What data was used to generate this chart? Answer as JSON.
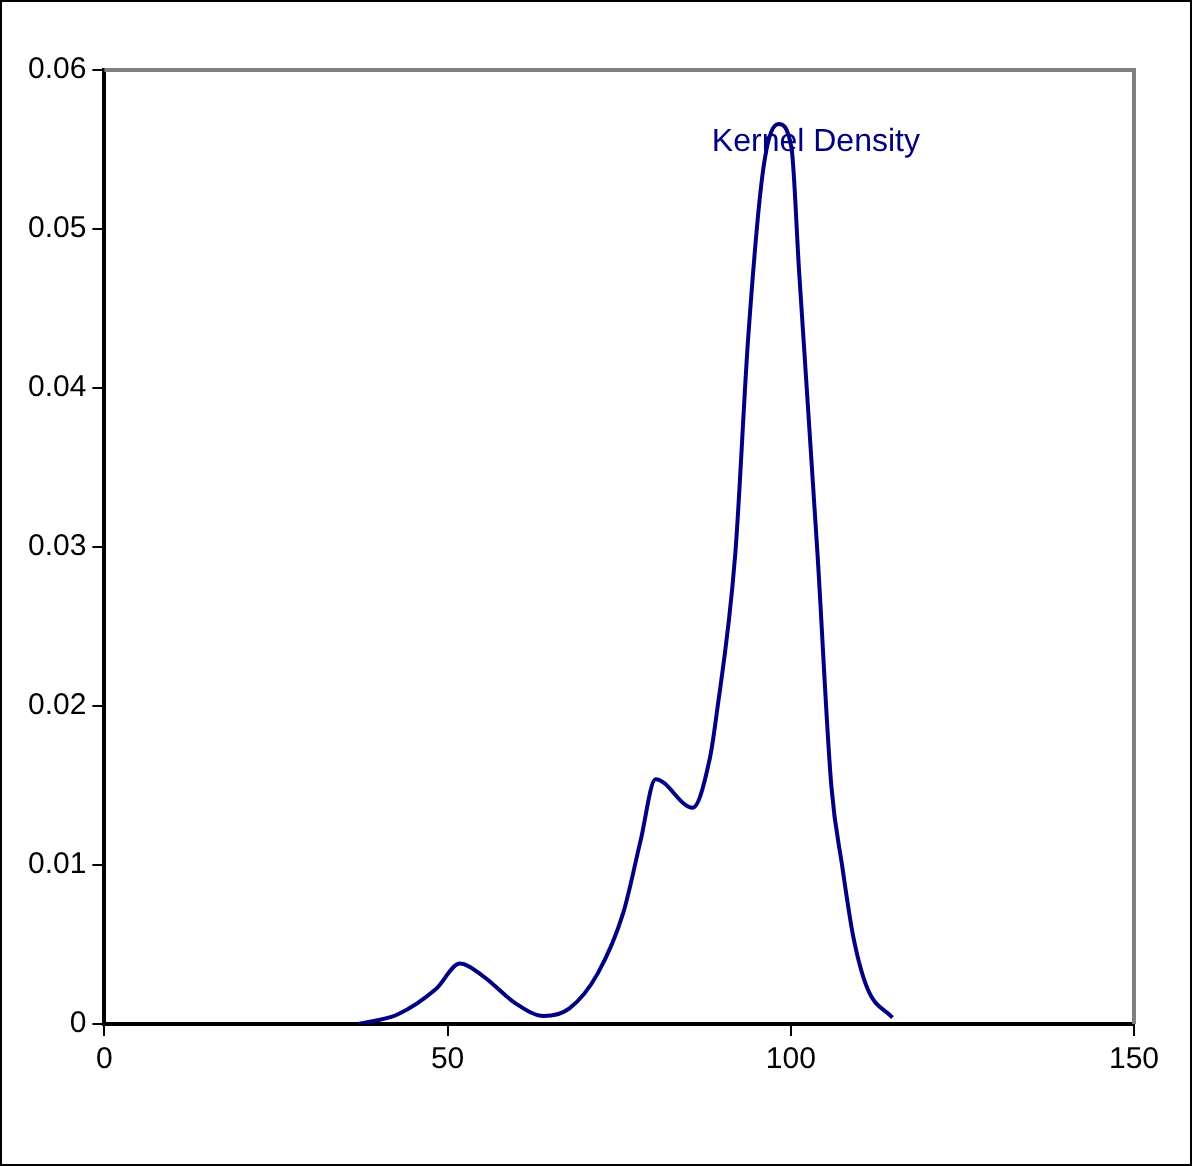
{
  "chart_data": {
    "type": "line",
    "x": [
      37,
      42.7,
      48.3,
      51.8,
      55.2,
      59.9,
      64,
      67.8,
      71.9,
      75.6,
      78.1,
      80.3,
      85.7,
      88.2,
      89.1,
      91.9,
      93.8,
      96,
      98.2,
      100.1,
      101.2,
      103.9,
      105.9,
      107.5,
      109.1,
      111.2,
      114.8
    ],
    "series": [
      {
        "name": "Kernel Density",
        "color": "#000080",
        "values": [
          0,
          0.0006,
          0.0022,
          0.0038,
          0.003,
          0.0013,
          0.0005,
          0.001,
          0.0032,
          0.007,
          0.0115,
          0.0154,
          0.0136,
          0.0167,
          0.0192,
          0.0295,
          0.0432,
          0.0538,
          0.0566,
          0.0551,
          0.0474,
          0.0295,
          0.015,
          0.0099,
          0.0055,
          0.0022,
          0.0004
        ]
      }
    ],
    "xlim": [
      0,
      150
    ],
    "xticks": [
      0,
      50,
      100,
      150
    ],
    "ylim": [
      0,
      0.06
    ],
    "yticks": [
      0,
      0.01,
      0.02,
      0.03,
      0.04,
      0.05,
      0.06
    ],
    "grid": false,
    "legend": false,
    "marker": "none",
    "line_style": "solid"
  }
}
